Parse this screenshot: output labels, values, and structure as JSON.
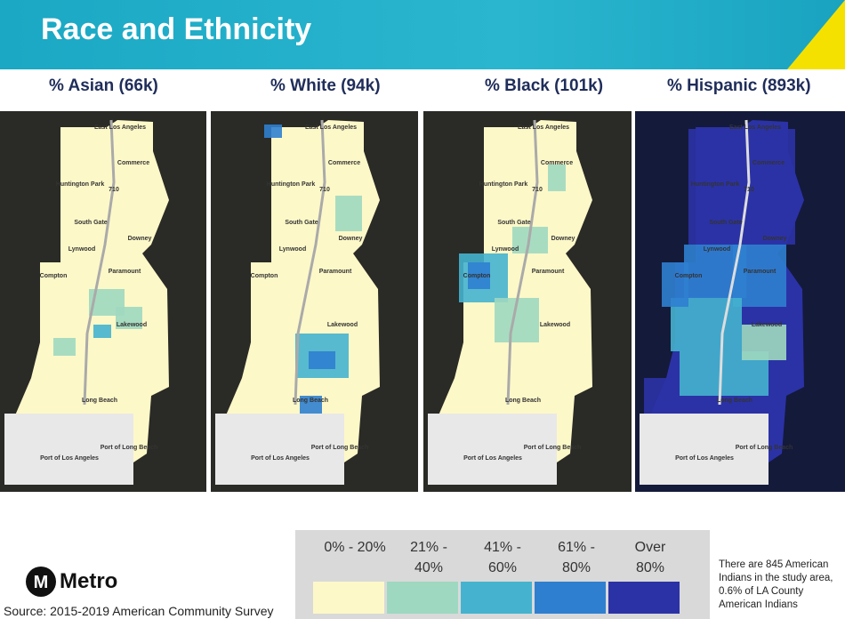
{
  "header": {
    "title": "Race and Ethnicity"
  },
  "maps": [
    {
      "title": "% Asian (66k)"
    },
    {
      "title": "% White (94k)"
    },
    {
      "title": "% Black (101k)"
    },
    {
      "title": "% Hispanic (893k)"
    }
  ],
  "places": [
    "East Los Angeles",
    "Commerce",
    "Huntington Park",
    "South Gate",
    "Downey",
    "Lynwood",
    "Paramount",
    "Compton",
    "Lakewood",
    "Long Beach",
    "Port of Long Beach",
    "Port of Los Angeles",
    "710"
  ],
  "legend": {
    "items": [
      {
        "label": "0% - 20%",
        "color": "#fdf8c8"
      },
      {
        "label": "21% - 40%",
        "color": "#9ed8c0"
      },
      {
        "label": "41% - 60%",
        "color": "#45b3cf"
      },
      {
        "label": "61% - 80%",
        "color": "#2f7fd0"
      },
      {
        "label": "Over 80%",
        "color": "#2b32a6"
      }
    ]
  },
  "note": "There are 845 American Indians in the study area, 0.6% of LA County American Indians",
  "logo": "Metro",
  "source": "Source: 2015-2019 American Community Survey"
}
